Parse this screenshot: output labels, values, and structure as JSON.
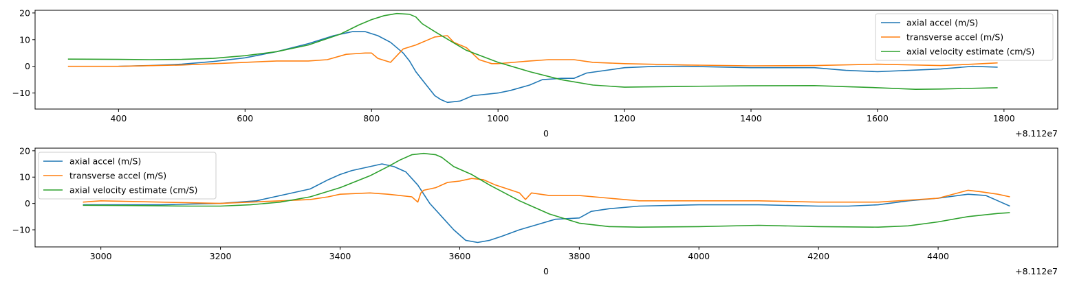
{
  "chart_data": [
    {
      "type": "line",
      "title": "",
      "xlabel": "0",
      "offset_label": "+8.112e7",
      "ylabel": "",
      "xlim": [
        268,
        1885
      ],
      "ylim": [
        -16,
        21
      ],
      "xticks": [
        400,
        600,
        800,
        1000,
        1200,
        1400,
        1600,
        1800
      ],
      "yticks": [
        -10,
        0,
        10,
        20
      ],
      "grid": false,
      "legend_position": "upper right",
      "series": [
        {
          "name": "axial accel (m/S)",
          "color": "#1f77b4",
          "x": [
            400,
            450,
            500,
            550,
            600,
            650,
            700,
            740,
            770,
            790,
            810,
            830,
            850,
            860,
            870,
            880,
            890,
            900,
            910,
            920,
            940,
            960,
            980,
            1000,
            1020,
            1050,
            1070,
            1100,
            1120,
            1140,
            1200,
            1250,
            1300,
            1400,
            1500,
            1550,
            1600,
            1650,
            1700,
            1750,
            1790
          ],
          "y": [
            0,
            0.3,
            0.8,
            1.8,
            3.2,
            5.5,
            8.5,
            11.5,
            13,
            13,
            11.5,
            9,
            5,
            2,
            -2,
            -5,
            -8,
            -11,
            -12.5,
            -13.5,
            -13,
            -11,
            -10.5,
            -10,
            -9,
            -7,
            -5,
            -4.5,
            -4.5,
            -2.5,
            -0.5,
            0,
            0,
            -0.5,
            -0.5,
            -1.5,
            -2,
            -1.5,
            -1,
            0,
            -0.3
          ]
        },
        {
          "name": "transverse accel (m/S)",
          "color": "#ff7f0e",
          "x": [
            320,
            400,
            500,
            600,
            650,
            700,
            730,
            760,
            790,
            800,
            810,
            830,
            840,
            850,
            870,
            890,
            900,
            920,
            930,
            950,
            970,
            990,
            1000,
            1050,
            1080,
            1100,
            1120,
            1150,
            1200,
            1300,
            1400,
            1500,
            1600,
            1700,
            1750,
            1790
          ],
          "y": [
            0,
            0,
            0.5,
            1.5,
            2,
            2,
            2.5,
            4.5,
            5,
            5,
            3,
            1.5,
            4,
            6.5,
            8,
            10,
            11,
            11.5,
            9,
            7,
            2.5,
            1,
            1,
            2,
            2.5,
            2.5,
            2.5,
            1.5,
            1,
            0.5,
            0.2,
            0.3,
            0.8,
            0.3,
            0.8,
            1.3
          ]
        },
        {
          "name": "axial velocity estimate (cm/S)",
          "color": "#2ca02c",
          "x": [
            320,
            400,
            450,
            500,
            550,
            600,
            650,
            700,
            750,
            780,
            800,
            820,
            840,
            860,
            870,
            880,
            900,
            950,
            1000,
            1050,
            1100,
            1150,
            1200,
            1300,
            1400,
            1500,
            1600,
            1660,
            1700,
            1790
          ],
          "y": [
            2.7,
            2.6,
            2.5,
            2.6,
            3,
            4,
            5.5,
            8,
            12,
            15.5,
            17.5,
            19,
            19.8,
            19.5,
            18.5,
            16,
            13,
            6,
            1.5,
            -2,
            -5,
            -7,
            -7.8,
            -7.5,
            -7.3,
            -7.2,
            -8,
            -8.6,
            -8.5,
            -8
          ]
        }
      ]
    },
    {
      "type": "line",
      "title": "",
      "xlabel": "0",
      "offset_label": "+8.112e7",
      "ylabel": "",
      "xlim": [
        2890,
        4600
      ],
      "ylim": [
        -16.5,
        21
      ],
      "xticks": [
        3000,
        3200,
        3400,
        3600,
        3800,
        4000,
        4200,
        4400
      ],
      "yticks": [
        -10,
        0,
        10,
        20
      ],
      "grid": false,
      "legend_position": "upper left",
      "series": [
        {
          "name": "axial accel (m/S)",
          "color": "#1f77b4",
          "x": [
            2970,
            3100,
            3200,
            3260,
            3300,
            3350,
            3380,
            3400,
            3420,
            3450,
            3470,
            3490,
            3510,
            3530,
            3550,
            3570,
            3590,
            3610,
            3630,
            3650,
            3670,
            3700,
            3730,
            3760,
            3800,
            3820,
            3850,
            3900,
            4000,
            4100,
            4200,
            4250,
            4300,
            4350,
            4400,
            4450,
            4480,
            4500,
            4520
          ],
          "y": [
            -0.5,
            -0.5,
            0,
            1,
            3,
            5.5,
            9,
            11,
            12.5,
            14,
            15,
            14,
            12,
            7,
            0,
            -5,
            -10,
            -14,
            -14.8,
            -14,
            -12.5,
            -10,
            -8,
            -6,
            -5.5,
            -3,
            -2,
            -1,
            -0.5,
            -0.5,
            -1,
            -1,
            -0.5,
            1,
            2,
            3.5,
            3,
            1,
            -1
          ]
        },
        {
          "name": "transverse accel (m/S)",
          "color": "#ff7f0e",
          "x": [
            2970,
            3000,
            3100,
            3200,
            3250,
            3300,
            3350,
            3380,
            3400,
            3450,
            3480,
            3500,
            3520,
            3530,
            3535,
            3540,
            3560,
            3580,
            3600,
            3620,
            3640,
            3660,
            3700,
            3710,
            3720,
            3750,
            3800,
            3850,
            3900,
            4000,
            4100,
            4200,
            4300,
            4400,
            4450,
            4470,
            4500,
            4520
          ],
          "y": [
            0.5,
            1,
            0.5,
            0,
            0.5,
            1,
            1.5,
            2.5,
            3.5,
            4,
            3.5,
            3,
            2.5,
            0.5,
            4,
            5,
            6,
            8,
            8.5,
            9.5,
            9,
            7,
            4,
            1.5,
            4,
            3,
            3,
            2,
            1,
            1,
            1,
            0.5,
            0.5,
            2,
            5,
            4.5,
            3.5,
            2.5
          ]
        },
        {
          "name": "axial velocity estimate (cm/S)",
          "color": "#2ca02c",
          "x": [
            2970,
            3050,
            3100,
            3150,
            3200,
            3250,
            3300,
            3350,
            3400,
            3450,
            3480,
            3500,
            3520,
            3540,
            3560,
            3570,
            3590,
            3620,
            3650,
            3700,
            3750,
            3800,
            3850,
            3900,
            4000,
            4100,
            4200,
            4300,
            4350,
            4400,
            4450,
            4500,
            4520
          ],
          "y": [
            -0.7,
            -0.8,
            -0.9,
            -1,
            -1,
            -0.5,
            0.5,
            2.5,
            6,
            10.5,
            14,
            16.5,
            18.5,
            19,
            18.5,
            17.5,
            14,
            11,
            7,
            1,
            -4,
            -7.5,
            -8.8,
            -9,
            -8.8,
            -8.3,
            -8.8,
            -9,
            -8.5,
            -7,
            -5,
            -3.8,
            -3.5
          ]
        }
      ]
    }
  ]
}
